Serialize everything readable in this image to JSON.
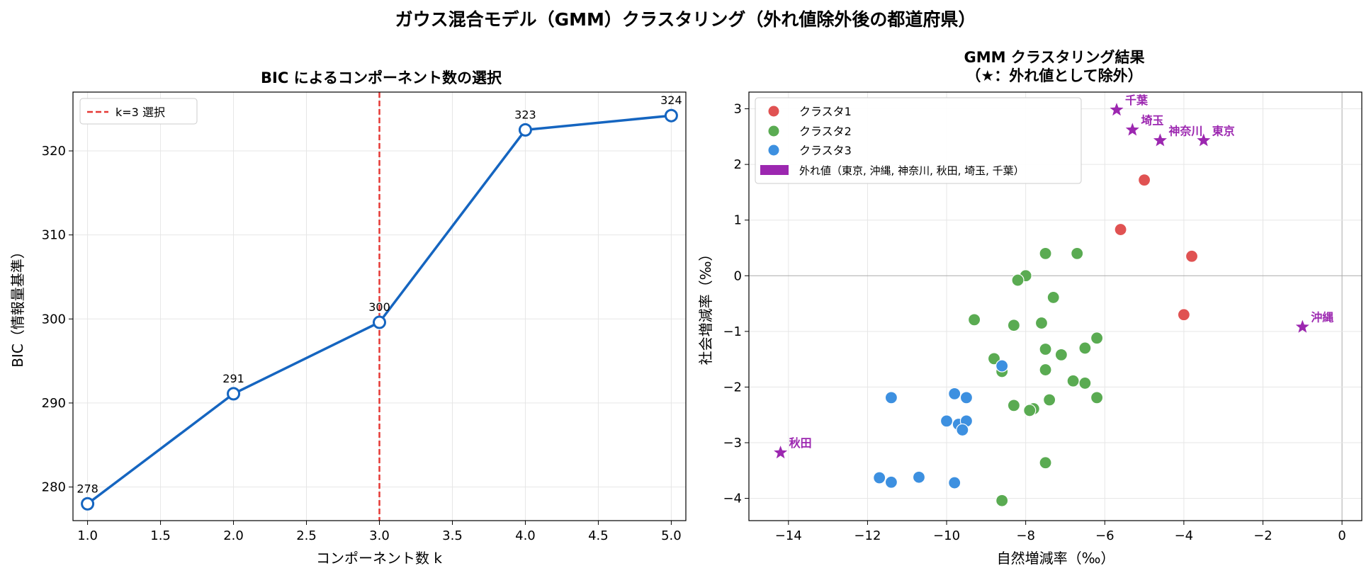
{
  "suptitle": "ガウス混合モデル（GMM）クラスタリング（外れ値除外後の都道府県）",
  "colors": {
    "line": "#1565c0",
    "vline": "#e53935",
    "cluster1": "#e05252",
    "cluster2": "#5aab52",
    "cluster3": "#3d90e0",
    "outlier": "#9c27b0",
    "grid": "#e6e6e6",
    "zero": "#aaaaaa"
  },
  "chart_data": [
    {
      "type": "line",
      "title": "BIC によるコンポーネント数の選択",
      "xlabel": "コンポーネント数 k",
      "ylabel": "BIC（情報量基準）",
      "xlim": [
        0.9,
        5.1
      ],
      "ylim": [
        276,
        327
      ],
      "xticks": [
        1.0,
        1.5,
        2.0,
        2.5,
        3.0,
        3.5,
        4.0,
        4.5,
        5.0
      ],
      "xtick_labels": [
        "1.0",
        "1.5",
        "2.0",
        "2.5",
        "3.0",
        "3.5",
        "4.0",
        "4.5",
        "5.0"
      ],
      "yticks": [
        280,
        290,
        300,
        310,
        320
      ],
      "ytick_labels": [
        "280",
        "290",
        "300",
        "310",
        "320"
      ],
      "x": [
        1,
        2,
        3,
        4,
        5
      ],
      "values": [
        278.0,
        291.1,
        299.6,
        322.5,
        324.2
      ],
      "data_labels": [
        "278",
        "291",
        "300",
        "323",
        "324"
      ],
      "vline": {
        "x": 3,
        "label": "k=3 選択"
      },
      "grid": true,
      "legend": "top-left"
    },
    {
      "type": "scatter",
      "title": [
        "GMM クラスタリング結果",
        "（★：外れ値として除外）"
      ],
      "xlabel": "自然増減率（‰）",
      "ylabel": "社会増減率（‰）",
      "xlim": [
        -15,
        0.5
      ],
      "ylim": [
        -4.4,
        3.3
      ],
      "xticks": [
        -14,
        -12,
        -10,
        -8,
        -6,
        -4,
        -2,
        0
      ],
      "xtick_labels": [
        "−14",
        "−12",
        "−10",
        "−8",
        "−6",
        "−4",
        "−2",
        "0"
      ],
      "yticks": [
        -4,
        -3,
        -2,
        -1,
        0,
        1,
        2,
        3
      ],
      "ytick_labels": [
        "−4",
        "−3",
        "−2",
        "−1",
        "0",
        "1",
        "2",
        "3"
      ],
      "grid": true,
      "legend": "top-left",
      "series": [
        {
          "name": "クラスタ1",
          "points": [
            [
              -5.6,
              0.83
            ],
            [
              -5.0,
              1.72
            ],
            [
              -4.0,
              -0.7
            ],
            [
              -3.8,
              0.35
            ]
          ]
        },
        {
          "name": "クラスタ2",
          "points": [
            [
              -7.5,
              0.4
            ],
            [
              -6.7,
              0.4
            ],
            [
              -8.0,
              0.0
            ],
            [
              -8.2,
              -0.08
            ],
            [
              -7.3,
              -0.39
            ],
            [
              -9.3,
              -0.79
            ],
            [
              -8.3,
              -0.89
            ],
            [
              -7.6,
              -0.85
            ],
            [
              -6.2,
              -1.12
            ],
            [
              -7.5,
              -1.32
            ],
            [
              -7.1,
              -1.42
            ],
            [
              -6.5,
              -1.3
            ],
            [
              -8.8,
              -1.49
            ],
            [
              -8.6,
              -1.72
            ],
            [
              -7.5,
              -1.69
            ],
            [
              -6.8,
              -1.89
            ],
            [
              -6.5,
              -1.93
            ],
            [
              -6.2,
              -2.19
            ],
            [
              -7.4,
              -2.23
            ],
            [
              -8.3,
              -2.33
            ],
            [
              -7.8,
              -2.39
            ],
            [
              -7.9,
              -2.42
            ],
            [
              -7.5,
              -3.36
            ],
            [
              -8.6,
              -4.04
            ]
          ]
        },
        {
          "name": "クラスタ3",
          "points": [
            [
              -8.6,
              -1.62
            ],
            [
              -11.4,
              -2.19
            ],
            [
              -9.8,
              -2.12
            ],
            [
              -9.5,
              -2.19
            ],
            [
              -10.0,
              -2.61
            ],
            [
              -9.7,
              -2.67
            ],
            [
              -9.5,
              -2.61
            ],
            [
              -9.6,
              -2.77
            ],
            [
              -11.7,
              -3.63
            ],
            [
              -11.4,
              -3.71
            ],
            [
              -10.7,
              -3.62
            ],
            [
              -9.8,
              -3.72
            ]
          ]
        }
      ],
      "outliers": {
        "name": "外れ値（東京, 沖縄, 神奈川, 秋田, 埼玉, 千葉）",
        "points": [
          {
            "label": "千葉",
            "x": -5.7,
            "y": 2.98
          },
          {
            "label": "埼玉",
            "x": -5.3,
            "y": 2.62
          },
          {
            "label": "神奈川",
            "x": -4.6,
            "y": 2.43
          },
          {
            "label": "東京",
            "x": -3.5,
            "y": 2.43
          },
          {
            "label": "沖縄",
            "x": -1.0,
            "y": -0.92
          },
          {
            "label": "秋田",
            "x": -14.2,
            "y": -3.18
          }
        ]
      }
    }
  ]
}
